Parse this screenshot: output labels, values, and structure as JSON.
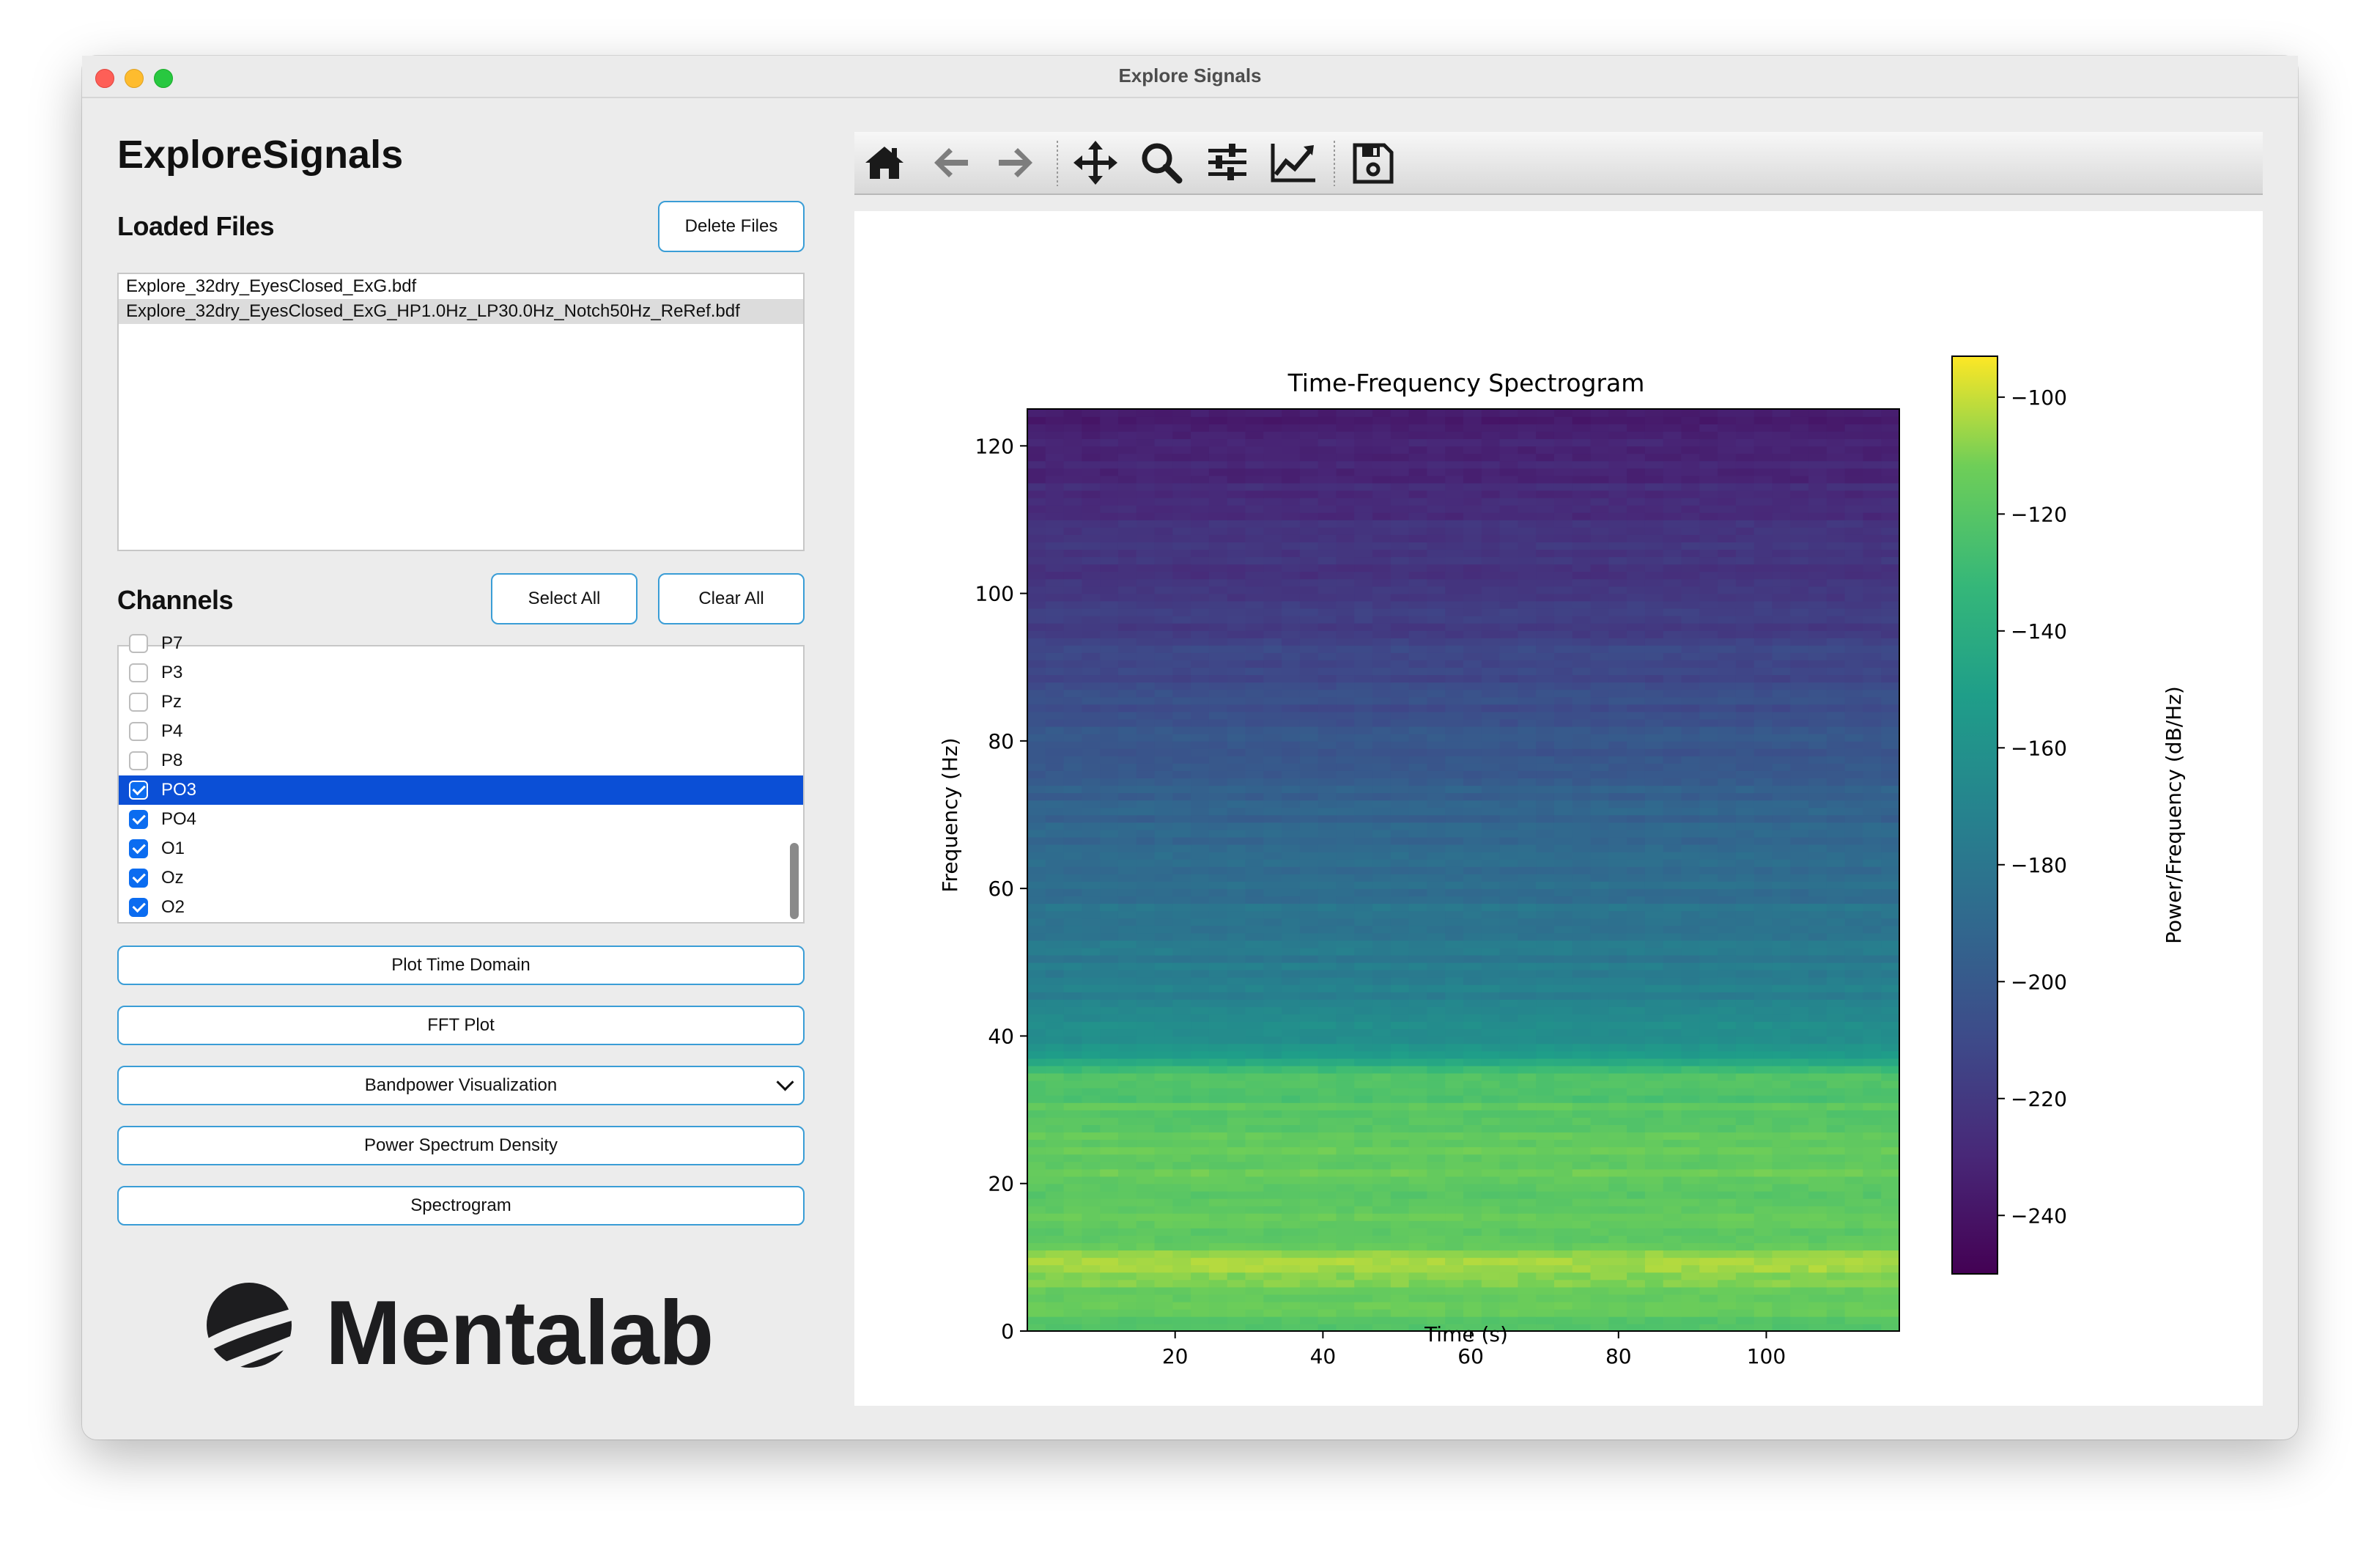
{
  "window": {
    "title": "Explore Signals"
  },
  "app": {
    "title": "ExploreSignals"
  },
  "files": {
    "heading": "Loaded Files",
    "delete_label": "Delete Files",
    "items": [
      {
        "name": "Explore_32dry_EyesClosed_ExG.bdf",
        "selected": false
      },
      {
        "name": "Explore_32dry_EyesClosed_ExG_HP1.0Hz_LP30.0Hz_Notch50Hz_ReRef.bdf",
        "selected": true
      }
    ]
  },
  "channels": {
    "heading": "Channels",
    "select_all_label": "Select All",
    "clear_all_label": "Clear All",
    "items": [
      {
        "name": "P7",
        "checked": false,
        "selected": false
      },
      {
        "name": "P3",
        "checked": false,
        "selected": false
      },
      {
        "name": "Pz",
        "checked": false,
        "selected": false
      },
      {
        "name": "P4",
        "checked": false,
        "selected": false
      },
      {
        "name": "P8",
        "checked": false,
        "selected": false
      },
      {
        "name": "PO3",
        "checked": true,
        "selected": true
      },
      {
        "name": "PO4",
        "checked": true,
        "selected": false
      },
      {
        "name": "O1",
        "checked": true,
        "selected": false
      },
      {
        "name": "Oz",
        "checked": true,
        "selected": false
      },
      {
        "name": "O2",
        "checked": true,
        "selected": false
      }
    ]
  },
  "actions": {
    "time_domain": "Plot Time Domain",
    "fft": "FFT Plot",
    "bandpower": "Bandpower Visualization",
    "psd": "Power Spectrum Density",
    "spectrogram": "Spectrogram"
  },
  "logo": {
    "text": "Mentalab"
  },
  "toolbar": {
    "icons": [
      "home-icon",
      "back-arrow-icon",
      "forward-arrow-icon",
      "pan-icon",
      "zoom-icon",
      "configure-subplots-icon",
      "edit-axis-icon",
      "save-icon"
    ]
  },
  "chart_data": {
    "type": "heatmap",
    "title": "Time-Frequency Spectrogram",
    "xlabel": "Time (s)",
    "ylabel": "Frequency (Hz)",
    "xlim": [
      0,
      118
    ],
    "ylim": [
      0,
      125
    ],
    "xticks": [
      20,
      40,
      60,
      80,
      100
    ],
    "yticks": [
      0,
      20,
      40,
      60,
      80,
      100,
      120
    ],
    "colormap": "viridis",
    "colorbar": {
      "label": "Power/Frequency (dB/Hz)",
      "range": [
        -250,
        -93
      ],
      "ticks": [
        -100,
        -120,
        -140,
        -160,
        -180,
        -200,
        -220,
        -240
      ]
    },
    "frequency_profile_db": [
      {
        "freq": 0,
        "db": -118
      },
      {
        "freq": 5,
        "db": -117
      },
      {
        "freq": 9,
        "db": -99
      },
      {
        "freq": 12,
        "db": -115
      },
      {
        "freq": 20,
        "db": -116
      },
      {
        "freq": 30,
        "db": -119
      },
      {
        "freq": 35,
        "db": -125
      },
      {
        "freq": 38,
        "db": -158
      },
      {
        "freq": 45,
        "db": -172
      },
      {
        "freq": 60,
        "db": -185
      },
      {
        "freq": 80,
        "db": -203
      },
      {
        "freq": 100,
        "db": -220
      },
      {
        "freq": 125,
        "db": -235
      }
    ]
  }
}
